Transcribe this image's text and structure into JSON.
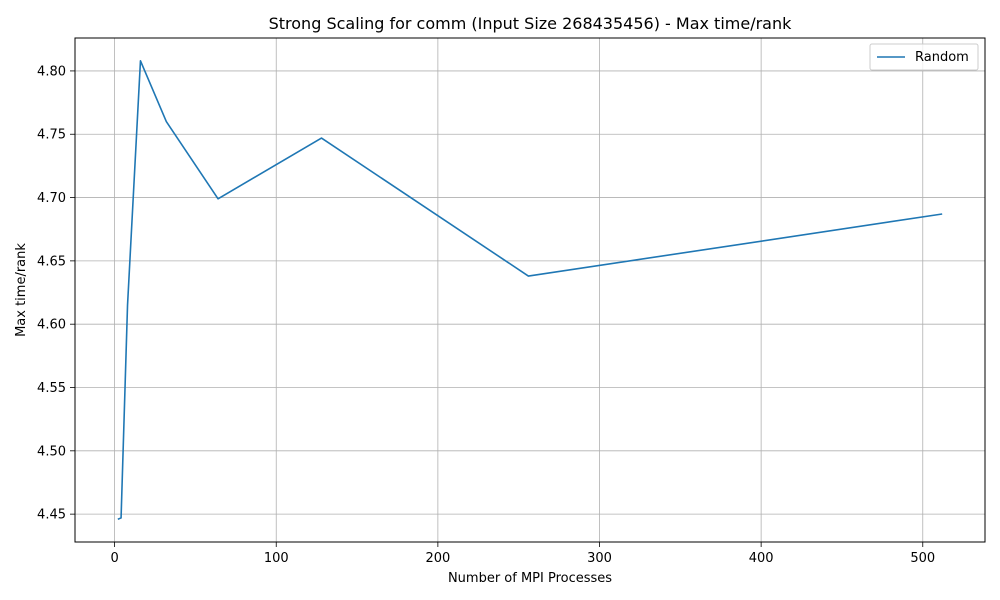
{
  "chart_data": {
    "type": "line",
    "title": "Strong Scaling for comm (Input Size 268435456) - Max time/rank",
    "xlabel": "Number of MPI Processes",
    "ylabel": "Max time/rank",
    "xlim": [
      -24.5,
      538.5
    ],
    "ylim": [
      4.428,
      4.826
    ],
    "xticks": [
      0,
      100,
      200,
      300,
      400,
      500
    ],
    "yticks": [
      4.45,
      4.5,
      4.55,
      4.6,
      4.65,
      4.7,
      4.75,
      4.8
    ],
    "xtick_labels": [
      "0",
      "100",
      "200",
      "300",
      "400",
      "500"
    ],
    "ytick_labels": [
      "4.45",
      "4.50",
      "4.55",
      "4.60",
      "4.65",
      "4.70",
      "4.75",
      "4.80"
    ],
    "grid": true,
    "legend_position": "top-right",
    "series": [
      {
        "name": "Random",
        "color": "#1f77b4",
        "x": [
          2,
          4,
          8,
          16,
          32,
          64,
          128,
          256,
          512
        ],
        "y": [
          4.446,
          4.447,
          4.615,
          4.808,
          4.76,
          4.699,
          4.747,
          4.638,
          4.687
        ]
      }
    ]
  }
}
